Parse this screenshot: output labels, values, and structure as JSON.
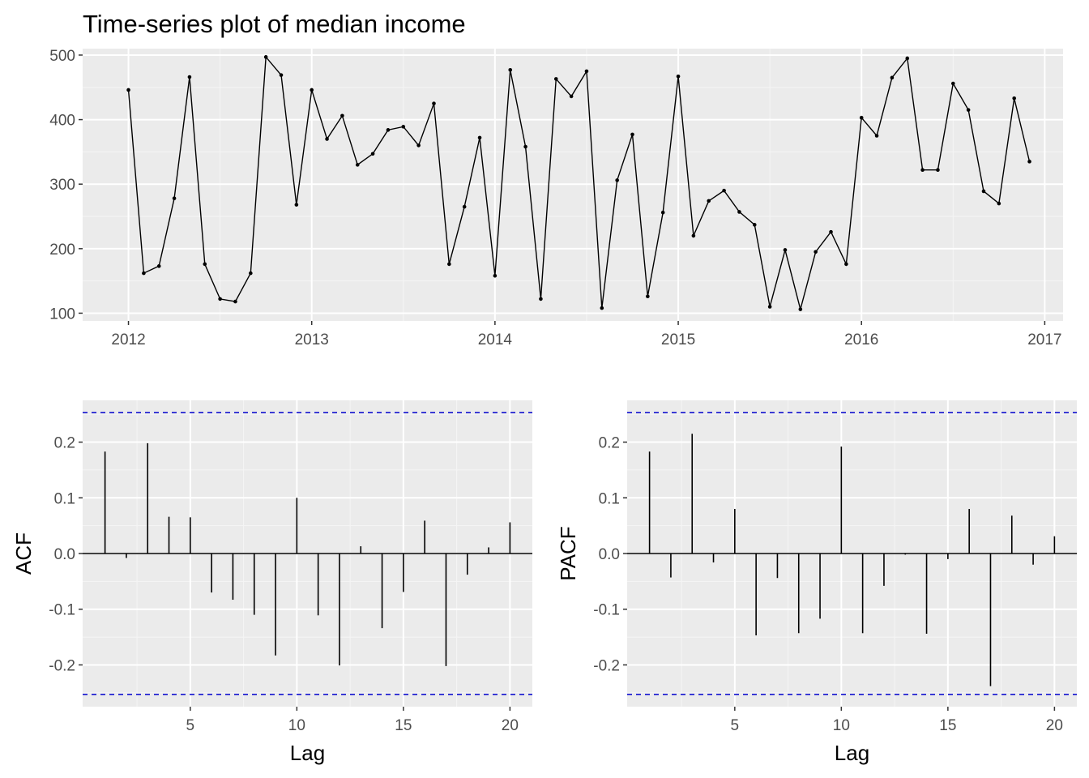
{
  "colors": {
    "panel_bg": "#ebebeb",
    "grid_major": "#ffffff",
    "grid_minor": "#f5f5f5",
    "series": "#000000",
    "ci_line": "#0000cc",
    "tick_text": "#4d4d4d"
  },
  "chart_data": [
    {
      "type": "line",
      "title": "Time-series plot of median income",
      "xlabel": "",
      "ylabel": "",
      "xlim": [
        2011.75,
        2017.1
      ],
      "ylim": [
        88,
        510
      ],
      "x_ticks": [
        2012,
        2013,
        2014,
        2015,
        2016,
        2017
      ],
      "x_tick_labels": [
        "2012",
        "2013",
        "2014",
        "2015",
        "2016",
        "2017"
      ],
      "y_ticks": [
        100,
        200,
        300,
        400,
        500
      ],
      "y_tick_labels": [
        "100",
        "200",
        "300",
        "400",
        "500"
      ],
      "grid": true,
      "markers": true,
      "start": [
        2012,
        1
      ],
      "frequency": 12,
      "values": [
        446,
        162,
        173,
        278,
        466,
        176,
        122,
        118,
        162,
        497,
        469,
        268,
        446,
        370,
        406,
        330,
        347,
        384,
        389,
        360,
        425,
        176,
        265,
        372,
        158,
        477,
        358,
        122,
        463,
        436,
        475,
        108,
        306,
        377,
        126,
        256,
        467,
        220,
        274,
        290,
        257,
        237,
        110,
        198,
        106,
        195,
        226,
        176,
        403,
        375,
        465,
        495,
        322,
        322,
        456,
        415,
        289,
        270,
        433,
        335
      ]
    },
    {
      "type": "bar",
      "xlabel": "Lag",
      "ylabel": "ACF",
      "xlim": [
        -0.05,
        21.05
      ],
      "ylim": [
        -0.275,
        0.275
      ],
      "x_ticks": [
        5,
        10,
        15,
        20
      ],
      "x_tick_labels": [
        "5",
        "10",
        "15",
        "20"
      ],
      "y_ticks": [
        -0.2,
        -0.1,
        0.0,
        0.1,
        0.2
      ],
      "y_tick_labels": [
        "-0.2",
        "-0.1",
        "0.0",
        "0.1",
        "0.2"
      ],
      "ci_bounds": [
        0.253,
        -0.253
      ],
      "grid": true,
      "lags": [
        1,
        2,
        3,
        4,
        5,
        6,
        7,
        8,
        9,
        10,
        11,
        12,
        13,
        14,
        15,
        16,
        17,
        18,
        19,
        20
      ],
      "values": [
        0.183,
        -0.008,
        0.198,
        0.066,
        0.065,
        -0.07,
        -0.083,
        -0.11,
        -0.183,
        0.1,
        -0.111,
        -0.201,
        0.013,
        -0.134,
        -0.069,
        0.059,
        -0.202,
        -0.038,
        0.011,
        0.056
      ]
    },
    {
      "type": "bar",
      "xlabel": "Lag",
      "ylabel": "PACF",
      "xlim": [
        -0.05,
        21.05
      ],
      "ylim": [
        -0.275,
        0.275
      ],
      "x_ticks": [
        5,
        10,
        15,
        20
      ],
      "x_tick_labels": [
        "5",
        "10",
        "15",
        "20"
      ],
      "y_ticks": [
        -0.2,
        -0.1,
        0.0,
        0.1,
        0.2
      ],
      "y_tick_labels": [
        "-0.2",
        "-0.1",
        "0.0",
        "0.1",
        "0.2"
      ],
      "ci_bounds": [
        0.253,
        -0.253
      ],
      "grid": true,
      "lags": [
        1,
        2,
        3,
        4,
        5,
        6,
        7,
        8,
        9,
        10,
        11,
        12,
        13,
        14,
        15,
        16,
        17,
        18,
        19,
        20
      ],
      "values": [
        0.183,
        -0.043,
        0.215,
        -0.016,
        0.08,
        -0.147,
        -0.044,
        -0.143,
        -0.117,
        0.192,
        -0.143,
        -0.058,
        -0.002,
        -0.144,
        -0.01,
        0.08,
        -0.238,
        0.068,
        -0.02,
        0.031
      ]
    }
  ]
}
